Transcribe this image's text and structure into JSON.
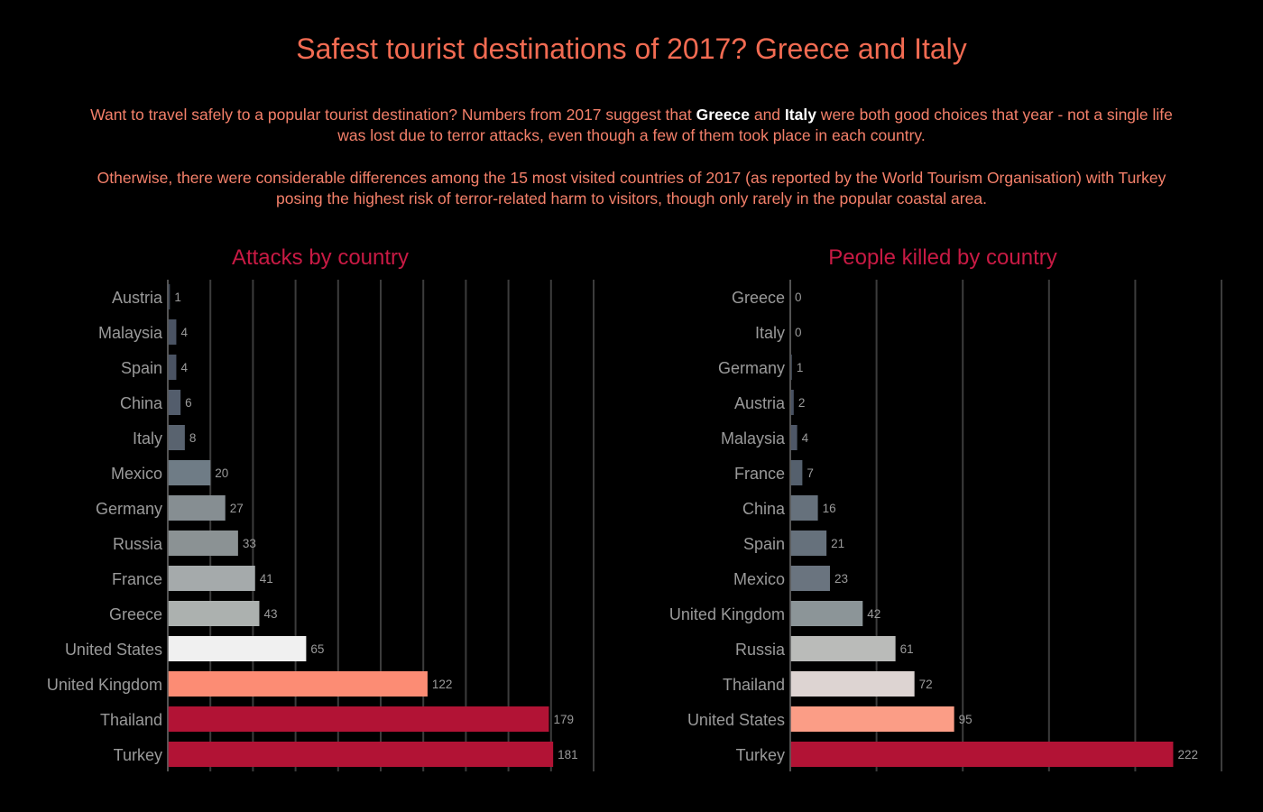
{
  "title": "Safest tourist destinations of 2017? Greece and Italy",
  "intro": {
    "p1_before": "Want to travel safely to a popular tourist destination? Numbers from 2017 suggest that ",
    "p1_bold1": "Greece",
    "p1_and": " and ",
    "p1_bold2": "Italy",
    "p1_after": " were both good choices that year - not a single life was lost due to terror attacks, even though a few of them took place in each country.",
    "p2": "Otherwise, there were considerable differences among the 15 most visited countries of 2017 (as reported by the World Tourism Organisation) with Turkey posing the highest risk of terror-related harm to visitors, though only rarely in the popular coastal area."
  },
  "colors": {
    "background": "#000000",
    "title": "#f26b52",
    "chart_title": "#c81a44",
    "gridline": "#3c3c3c",
    "axis_label": "#9a9a9a",
    "value_label": "#9a9a9a"
  },
  "chart_data": [
    {
      "type": "bar",
      "orientation": "horizontal",
      "title": "Attacks by country",
      "categories": [
        "Austria",
        "Malaysia",
        "Spain",
        "China",
        "Italy",
        "Mexico",
        "Germany",
        "Russia",
        "France",
        "Greece",
        "United States",
        "United Kingdom",
        "Thailand",
        "Turkey"
      ],
      "values": [
        1,
        4,
        4,
        6,
        8,
        20,
        27,
        33,
        41,
        43,
        65,
        122,
        179,
        181
      ],
      "bar_colors": [
        "#3e4756",
        "#4a5363",
        "#4a5363",
        "#535d6c",
        "#59636f",
        "#6f7c86",
        "#868e92",
        "#8b9294",
        "#a5aaab",
        "#acb1af",
        "#f0f0f0",
        "#fc8c74",
        "#b21335",
        "#b21335"
      ],
      "xlim": [
        0,
        200
      ],
      "grid_step": 20,
      "grid": true
    },
    {
      "type": "bar",
      "orientation": "horizontal",
      "title": "People killed by country",
      "categories": [
        "Greece",
        "Italy",
        "Germany",
        "Austria",
        "Malaysia",
        "France",
        "China",
        "Spain",
        "Mexico",
        "United Kingdom",
        "Russia",
        "Thailand",
        "United States",
        "Turkey"
      ],
      "values": [
        0,
        0,
        1,
        2,
        4,
        7,
        16,
        21,
        23,
        42,
        61,
        72,
        95,
        222
      ],
      "bar_colors": [
        "#3a4352",
        "#3a4352",
        "#3a4352",
        "#485161",
        "#4e5767",
        "#55606d",
        "#66717c",
        "#66717c",
        "#6a747f",
        "#8c9598",
        "#babbb9",
        "#ddd4d2",
        "#fb9d86",
        "#b21335"
      ],
      "xlim": [
        0,
        250
      ],
      "grid_step": 50,
      "grid": true
    }
  ]
}
